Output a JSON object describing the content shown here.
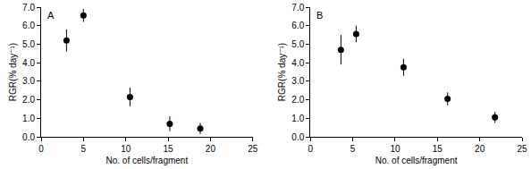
{
  "chart_data": [
    {
      "type": "scatter",
      "title": "A",
      "x_label": "No. of cells/fragment",
      "y_label": "RGR(% day⁻¹)",
      "series": [
        {
          "x": [
            3.0,
            5.0,
            10.5,
            15.2,
            18.8
          ],
          "values": [
            5.2,
            6.55,
            2.15,
            0.7,
            0.45
          ],
          "error": [
            0.6,
            0.35,
            0.5,
            0.4,
            0.3
          ],
          "color": "#000000",
          "marker": "circle"
        }
      ],
      "xlim": [
        0,
        25
      ],
      "xticks": [
        0,
        5,
        10,
        15,
        20,
        25
      ],
      "ylim": [
        0,
        7
      ],
      "yticks": [
        {
          "value": 0,
          "label": "0.0"
        },
        {
          "value": 1,
          "label": "1.0"
        },
        {
          "value": 2,
          "label": "2.0"
        },
        {
          "value": 3,
          "label": "3.0"
        },
        {
          "value": 4,
          "label": "4.0"
        },
        {
          "value": 5,
          "label": "5.0"
        },
        {
          "value": 6,
          "label": "6.0"
        },
        {
          "value": 7,
          "label": "7.0"
        }
      ],
      "grid": false
    },
    {
      "type": "scatter",
      "title": "B",
      "x_label": "No. of cells/fragment",
      "y_label": "RGR(% day⁻¹)",
      "series": [
        {
          "x": [
            3.6,
            5.4,
            11.0,
            16.2,
            21.8
          ],
          "values": [
            4.7,
            5.55,
            3.75,
            2.05,
            1.05
          ],
          "error": [
            0.8,
            0.45,
            0.45,
            0.35,
            0.3
          ],
          "color": "#000000",
          "marker": "circle"
        }
      ],
      "xlim": [
        0,
        25
      ],
      "xticks": [
        0,
        5,
        10,
        15,
        20,
        25
      ],
      "ylim": [
        0,
        7
      ],
      "yticks": [
        {
          "value": 0,
          "label": "0.0"
        },
        {
          "value": 1,
          "label": "1.0"
        },
        {
          "value": 2,
          "label": "2.0"
        },
        {
          "value": 3,
          "label": "3.0"
        },
        {
          "value": 4,
          "label": "4.0"
        },
        {
          "value": 5,
          "label": "5.0"
        },
        {
          "value": 6,
          "label": "6.0"
        },
        {
          "value": 7,
          "label": "7.0"
        }
      ],
      "grid": false
    }
  ]
}
